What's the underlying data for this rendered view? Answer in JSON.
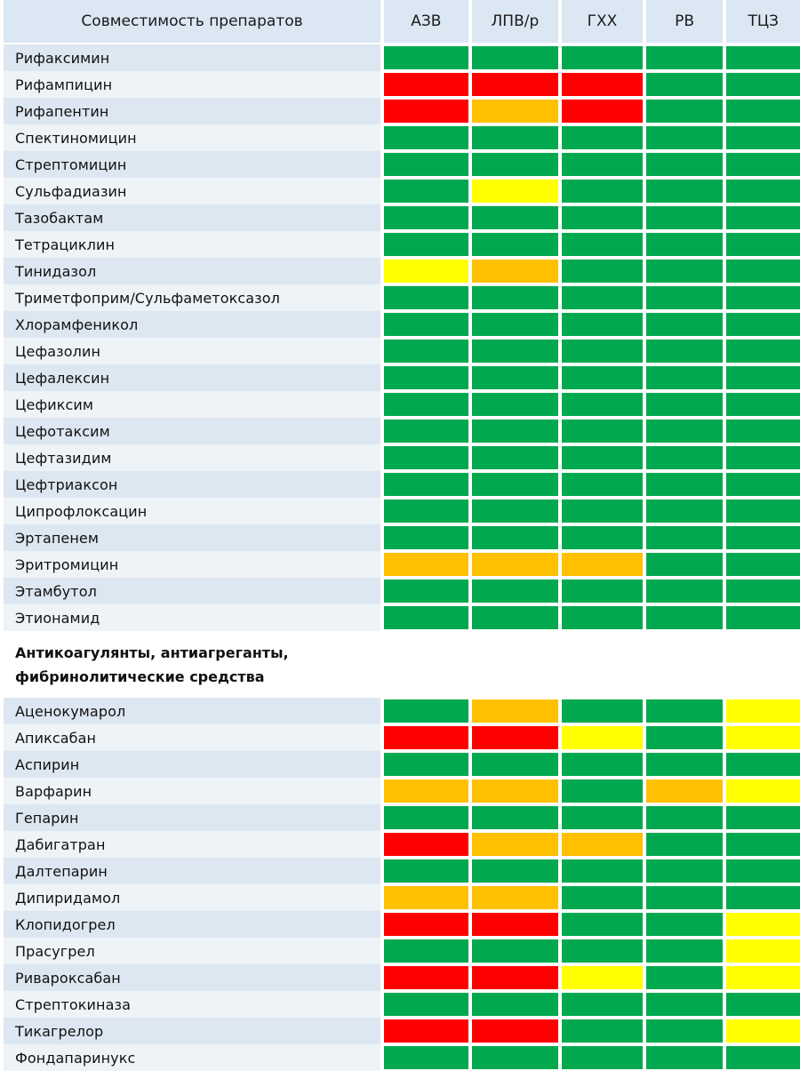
{
  "header": {
    "name_label": "Совместимость препаратов",
    "columns": [
      "АЗВ",
      "ЛПВ/р",
      "ГХХ",
      "РВ",
      "ТЦЗ"
    ]
  },
  "colors": {
    "green": "#00a94f",
    "red": "#ff0000",
    "orange": "#ffc000",
    "yellow": "#ffff00",
    "header_bg": "#dbe7f3",
    "row_bg": "#dde7f1"
  },
  "groups": [
    {
      "title": "",
      "rows": [
        {
          "name": "Рифаксимин",
          "cells": [
            "green",
            "green",
            "green",
            "green",
            "green"
          ]
        },
        {
          "name": "Рифампицин",
          "cells": [
            "red",
            "red",
            "red",
            "green",
            "green"
          ]
        },
        {
          "name": "Рифапентин",
          "cells": [
            "red",
            "orange",
            "red",
            "green",
            "green"
          ]
        },
        {
          "name": "Спектиномицин",
          "cells": [
            "green",
            "green",
            "green",
            "green",
            "green"
          ]
        },
        {
          "name": "Стрептомицин",
          "cells": [
            "green",
            "green",
            "green",
            "green",
            "green"
          ]
        },
        {
          "name": "Сульфадиазин",
          "cells": [
            "green",
            "yellow",
            "green",
            "green",
            "green"
          ]
        },
        {
          "name": "Тазобактам",
          "cells": [
            "green",
            "green",
            "green",
            "green",
            "green"
          ]
        },
        {
          "name": "Тетрациклин",
          "cells": [
            "green",
            "green",
            "green",
            "green",
            "green"
          ]
        },
        {
          "name": "Тинидазол",
          "cells": [
            "yellow",
            "orange",
            "green",
            "green",
            "green"
          ]
        },
        {
          "name": "Триметфоприм/Сульфаметоксазол",
          "cells": [
            "green",
            "green",
            "green",
            "green",
            "green"
          ]
        },
        {
          "name": "Хлорамфеникол",
          "cells": [
            "green",
            "green",
            "green",
            "green",
            "green"
          ]
        },
        {
          "name": "Цефазолин",
          "cells": [
            "green",
            "green",
            "green",
            "green",
            "green"
          ]
        },
        {
          "name": "Цефалексин",
          "cells": [
            "green",
            "green",
            "green",
            "green",
            "green"
          ]
        },
        {
          "name": "Цефиксим",
          "cells": [
            "green",
            "green",
            "green",
            "green",
            "green"
          ]
        },
        {
          "name": "Цефотаксим",
          "cells": [
            "green",
            "green",
            "green",
            "green",
            "green"
          ]
        },
        {
          "name": "Цефтазидим",
          "cells": [
            "green",
            "green",
            "green",
            "green",
            "green"
          ]
        },
        {
          "name": "Цефтриаксон",
          "cells": [
            "green",
            "green",
            "green",
            "green",
            "green"
          ]
        },
        {
          "name": "Ципрофлоксацин",
          "cells": [
            "green",
            "green",
            "green",
            "green",
            "green"
          ]
        },
        {
          "name": "Эртапенем",
          "cells": [
            "green",
            "green",
            "green",
            "green",
            "green"
          ]
        },
        {
          "name": "Эритромицин",
          "cells": [
            "orange",
            "orange",
            "orange",
            "green",
            "green"
          ]
        },
        {
          "name": "Этамбутол",
          "cells": [
            "green",
            "green",
            "green",
            "green",
            "green"
          ]
        },
        {
          "name": "Этионамид",
          "cells": [
            "green",
            "green",
            "green",
            "green",
            "green"
          ]
        }
      ]
    },
    {
      "title_lines": [
        "Антикоагулянты, антиагреганты,",
        "фибринолитические средства"
      ],
      "rows": [
        {
          "name": "Аценокумарол",
          "cells": [
            "green",
            "orange",
            "green",
            "green",
            "yellow"
          ]
        },
        {
          "name": "Апиксабан",
          "cells": [
            "red",
            "red",
            "yellow",
            "green",
            "yellow"
          ]
        },
        {
          "name": "Аспирин",
          "cells": [
            "green",
            "green",
            "green",
            "green",
            "green"
          ]
        },
        {
          "name": "Варфарин",
          "cells": [
            "orange",
            "orange",
            "green",
            "orange",
            "yellow"
          ]
        },
        {
          "name": "Гепарин",
          "cells": [
            "green",
            "green",
            "green",
            "green",
            "green"
          ]
        },
        {
          "name": "Дабигатран",
          "cells": [
            "red",
            "orange",
            "orange",
            "green",
            "green"
          ]
        },
        {
          "name": "Далтепарин",
          "cells": [
            "green",
            "green",
            "green",
            "green",
            "green"
          ]
        },
        {
          "name": "Дипиридамол",
          "cells": [
            "orange",
            "orange",
            "green",
            "green",
            "green"
          ]
        },
        {
          "name": "Клопидогрел",
          "cells": [
            "red",
            "red",
            "green",
            "green",
            "yellow"
          ]
        },
        {
          "name": "Прасугрел",
          "cells": [
            "green",
            "green",
            "green",
            "green",
            "yellow"
          ]
        },
        {
          "name": "Ривароксабан",
          "cells": [
            "red",
            "red",
            "yellow",
            "green",
            "yellow"
          ]
        },
        {
          "name": "Стрептокиназа",
          "cells": [
            "green",
            "green",
            "green",
            "green",
            "green"
          ]
        },
        {
          "name": "Тикагрелор",
          "cells": [
            "red",
            "red",
            "green",
            "green",
            "yellow"
          ]
        },
        {
          "name": "Фондапаринукс",
          "cells": [
            "green",
            "green",
            "green",
            "green",
            "green"
          ]
        }
      ]
    }
  ]
}
